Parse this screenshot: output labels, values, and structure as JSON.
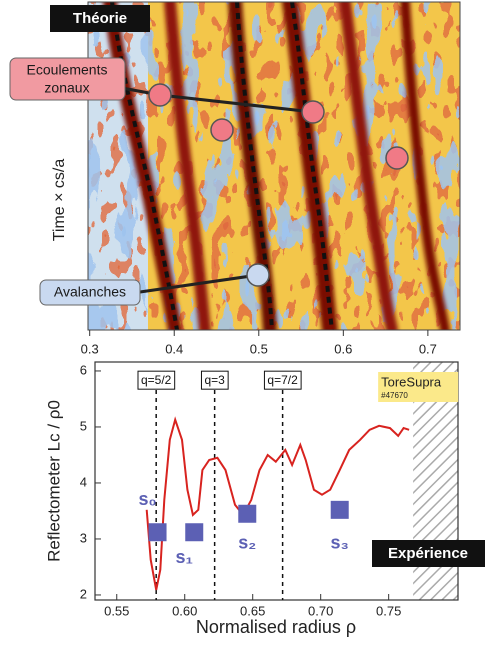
{
  "theory_panel": {
    "badge": "Théorie",
    "zonal_label": [
      "Ecoulements",
      "zonaux"
    ],
    "avalanche_label": "Avalanches",
    "y_label": "Time × cs/a",
    "xlim": [
      0.298,
      0.738
    ],
    "xticks": [
      0.3,
      0.4,
      0.5,
      0.6,
      0.7
    ]
  },
  "chart_data": {
    "type": "line",
    "y_label": "Reflectometer  Lc / ρ0",
    "x_label": "Normalised radius  ρ",
    "xlim": [
      0.534,
      0.801
    ],
    "ylim": [
      1.91,
      6.16
    ],
    "xticks": [
      0.55,
      {
        "value": 0.6,
        "label": "0.60"
      },
      {
        "value": 0.65,
        "label": "0.65"
      },
      {
        "value": 0.7,
        "label": "0.70"
      },
      0.75
    ],
    "yticks": [
      2,
      3,
      4,
      5,
      6
    ],
    "x": [
      0.572,
      0.575,
      0.579,
      0.582,
      0.585,
      0.589,
      0.593,
      0.598,
      0.602,
      0.606,
      0.61,
      0.613,
      0.618,
      0.624,
      0.63,
      0.637,
      0.643,
      0.649,
      0.655,
      0.661,
      0.667,
      0.674,
      0.679,
      0.685,
      0.689,
      0.695,
      0.701,
      0.707,
      0.714,
      0.721,
      0.729,
      0.736,
      0.743,
      0.751,
      0.757,
      0.761,
      0.765
    ],
    "values": [
      3.52,
      2.63,
      2.09,
      2.45,
      3.7,
      4.77,
      5.13,
      4.77,
      3.88,
      3.43,
      3.52,
      4.23,
      4.41,
      4.45,
      4.23,
      3.61,
      3.43,
      3.7,
      4.23,
      4.5,
      4.38,
      4.59,
      4.32,
      4.68,
      4.41,
      3.88,
      3.79,
      3.88,
      4.23,
      4.59,
      4.77,
      4.95,
      5.02,
      4.98,
      4.84,
      4.98,
      4.95
    ],
    "color": "#d8231f",
    "reference_lines": [
      {
        "x": 0.579,
        "label": "q=5/2"
      },
      {
        "x": 0.622,
        "label": "q=3"
      },
      {
        "x": 0.672,
        "label": "q=7/2"
      }
    ],
    "markers": {
      "color": "#5c60b4",
      "points": [
        {
          "label": "s₀",
          "x": 0.58,
          "y": 3.12
        },
        {
          "label": "s₁",
          "x": 0.607,
          "y": 3.12
        },
        {
          "label": "s₂",
          "x": 0.646,
          "y": 3.45
        },
        {
          "label": "s₃",
          "x": 0.714,
          "y": 3.52
        }
      ]
    },
    "hatch_xlim": [
      0.768,
      0.801
    ],
    "annotation": {
      "title": "ToreSupra",
      "shot": "#47670"
    },
    "badge": "Expérience"
  }
}
